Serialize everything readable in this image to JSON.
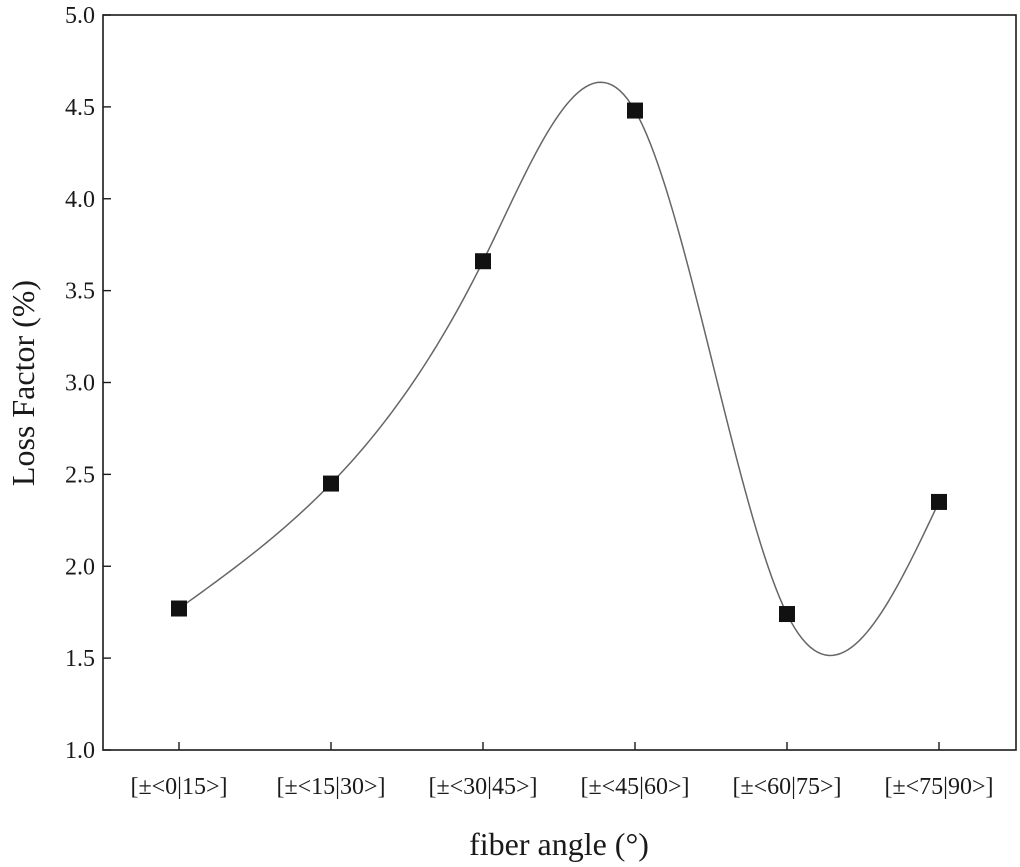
{
  "chart_data": {
    "type": "scatter",
    "title": "",
    "xlabel": "fiber angle (°)",
    "ylabel": "Loss Factor (%)",
    "categories": [
      "[±<0|15>]",
      "[±<15|30>]",
      "[±<30|45>]",
      "[±<45|60>]",
      "[±<60|75>]",
      "[±<75|90>]"
    ],
    "series": [
      {
        "values": [
          1.77,
          2.45,
          3.66,
          4.48,
          1.74,
          2.35
        ],
        "smooth_line": true,
        "marker": "square",
        "color": "#111111",
        "line_color": "#666666"
      }
    ],
    "ylim": [
      1.0,
      5.0
    ],
    "yticks": [
      "1.0",
      "1.5",
      "2.0",
      "2.5",
      "3.0",
      "3.5",
      "4.0",
      "4.5",
      "5.0"
    ],
    "grid": false,
    "legend": "none"
  }
}
